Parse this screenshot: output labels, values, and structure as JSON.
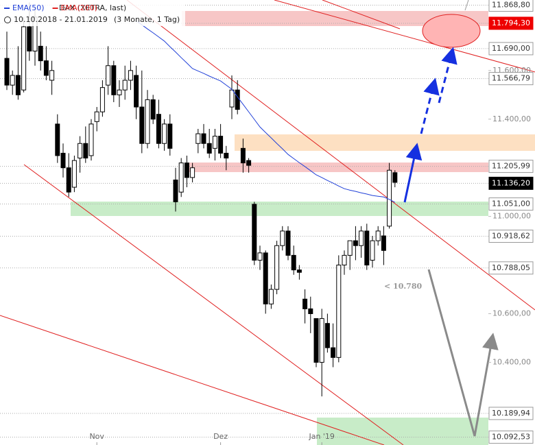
{
  "chart_data": {
    "type": "candlestick",
    "header": {
      "instrument": "DAX (XETRA, last)",
      "range": "10.10.2018 - 21.01.2019",
      "period": "(3 Monate, 1 Tag)"
    },
    "categories": [
      null,
      null,
      null,
      null,
      null,
      null,
      null,
      null,
      null,
      null,
      null,
      null,
      null,
      null,
      null,
      null,
      "Nov",
      null,
      null,
      null,
      null,
      null,
      null,
      null,
      null,
      null,
      null,
      null,
      null,
      null,
      null,
      null,
      null,
      null,
      null,
      null,
      null,
      null,
      "Dez",
      null,
      null,
      null,
      null,
      null,
      null,
      null,
      null,
      null,
      null,
      null,
      null,
      null,
      null,
      null,
      null,
      null,
      "Jan '19",
      null,
      null,
      null,
      null,
      null,
      null,
      null,
      null,
      null,
      null,
      null,
      null,
      null
    ],
    "open": [
      11650,
      11540,
      11580,
      11520,
      11780,
      11680,
      11700,
      11640,
      11560,
      11380,
      11260,
      11200,
      11120,
      11240,
      11300,
      11250,
      11390,
      11430,
      11540,
      11620,
      11500,
      11520,
      11560,
      11580,
      11450,
      11300,
      11480,
      11420,
      11300,
      11380,
      11150,
      11100,
      11220,
      11160,
      11300,
      11340,
      11300,
      11280,
      11330,
      11260,
      11450,
      11520,
      11280,
      11230,
      11050,
      10820,
      10850,
      10640,
      10700,
      10880,
      10940,
      10840,
      10780,
      10660,
      10620,
      10580,
      10400,
      10560,
      10460,
      10420,
      10800,
      10840,
      10900,
      10880,
      10940,
      10820,
      10900,
      10920,
      10960,
      11180
    ],
    "high": [
      11760,
      11600,
      11700,
      11820,
      11880,
      11860,
      11760,
      11700,
      11640,
      11420,
      11300,
      11260,
      11250,
      11330,
      11370,
      11400,
      11450,
      11560,
      11700,
      11640,
      11560,
      11620,
      11640,
      11620,
      11600,
      11520,
      11500,
      11480,
      11400,
      11420,
      11200,
      11240,
      11250,
      11220,
      11360,
      11380,
      11360,
      11360,
      11380,
      11290,
      11580,
      11560,
      11320,
      11240,
      11060,
      10880,
      10860,
      10720,
      10900,
      10960,
      10960,
      10880,
      10800,
      10700,
      10670,
      10580,
      10620,
      10600,
      10560,
      10840,
      10860,
      10900,
      10960,
      10960,
      10970,
      10920,
      10960,
      10960,
      11220,
      11190
    ],
    "low": [
      11520,
      11500,
      11480,
      11510,
      11640,
      11620,
      11600,
      11560,
      11500,
      11220,
      11160,
      11080,
      11100,
      11180,
      11220,
      11230,
      11350,
      11410,
      11500,
      11470,
      11450,
      11480,
      11520,
      11400,
      11260,
      11280,
      11380,
      11280,
      11270,
      11250,
      11020,
      11080,
      11120,
      11140,
      11260,
      11280,
      11240,
      11230,
      11240,
      11190,
      11400,
      11420,
      11180,
      11180,
      10800,
      10780,
      10600,
      10620,
      10680,
      10860,
      10820,
      10760,
      10740,
      10560,
      10520,
      10380,
      10260,
      10440,
      10380,
      10400,
      10760,
      10780,
      10820,
      10830,
      10780,
      10790,
      10880,
      10800,
      10950,
      11120
    ],
    "close": [
      11540,
      11580,
      11500,
      11780,
      11680,
      11820,
      11640,
      11580,
      11600,
      11250,
      11200,
      11100,
      11230,
      11300,
      11240,
      11380,
      11430,
      11530,
      11620,
      11500,
      11520,
      11560,
      11600,
      11450,
      11300,
      11480,
      11400,
      11300,
      11380,
      11280,
      11060,
      11220,
      11160,
      11200,
      11340,
      11300,
      11260,
      11330,
      11260,
      11240,
      11520,
      11440,
      11220,
      11210,
      10820,
      10850,
      10640,
      10700,
      10880,
      10940,
      10840,
      10780,
      10770,
      10620,
      10600,
      10400,
      10580,
      10460,
      10420,
      10800,
      10840,
      10900,
      10880,
      10940,
      10800,
      10900,
      10940,
      10860,
      11190,
      11140
    ],
    "indicators": [
      {
        "name": "EMA(50)",
        "color": "#2040d8",
        "values": [
          null,
          null,
          null,
          null,
          null,
          null,
          null,
          null,
          null,
          null,
          null,
          null,
          null,
          null,
          null,
          null,
          null,
          null,
          null,
          null,
          null,
          null,
          null,
          11805,
          11788,
          11771,
          11755,
          11738,
          11721,
          11698,
          11676,
          11653,
          11631,
          11608,
          11598,
          11588,
          11577,
          11567,
          11557,
          11540,
          11523,
          11492,
          11461,
          11430,
          11399,
          11368,
          11345,
          11323,
          11300,
          11278,
          11255,
          11238,
          11221,
          11205,
          11188,
          11171,
          11160,
          11148,
          11137,
          11125,
          11114,
          11108,
          11103,
          11097,
          11092,
          11086,
          11083,
          11080,
          11070,
          11058
        ]
      },
      {
        "name": "EMA(200)",
        "color": "#e02020"
      }
    ],
    "ylim": [
      10060,
      11890
    ],
    "yticks": [
      {
        "value": 11600,
        "label": "11.600,00"
      },
      {
        "value": 11400,
        "label": "11.400,00"
      },
      {
        "value": 11000,
        "label": "11.000,00"
      },
      {
        "value": 10600,
        "label": "10.600,00"
      },
      {
        "value": 10400,
        "label": "10.400,00"
      }
    ],
    "levels": [
      {
        "value": 11868.8,
        "label": "11.868,80"
      },
      {
        "value": 11794.3,
        "label": "11.794,30",
        "color": "#ee0000"
      },
      {
        "value": 11690,
        "label": "11.690,00"
      },
      {
        "value": 11566.79,
        "label": "11.566,79"
      },
      {
        "value": 11205.99,
        "label": "11.205,99"
      },
      {
        "value": 11136.2,
        "label": "11.136,20",
        "color": "#000000"
      },
      {
        "value": 11051,
        "label": "11.051,00"
      },
      {
        "value": 10918.62,
        "label": "10.918,62"
      },
      {
        "value": 10788.05,
        "label": "10.788,05"
      },
      {
        "value": 10189.94,
        "label": "10.189,94"
      },
      {
        "value": 10092.53,
        "label": "10.092,53"
      }
    ],
    "annotation": "< 10.780"
  }
}
